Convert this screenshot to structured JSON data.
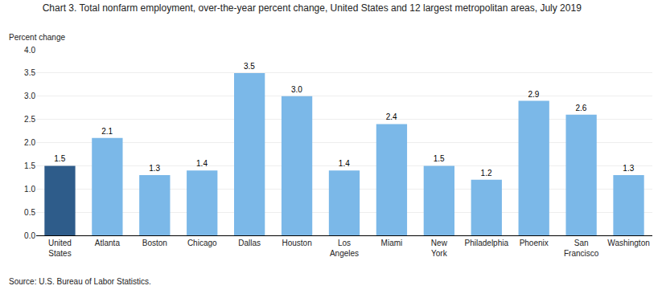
{
  "chart_data": {
    "type": "bar",
    "title": "Chart 3. Total nonfarm employment, over-the-year percent change, United States and 12 largest metropolitan areas, July 2019",
    "ylabel": "Percent change",
    "source": "Source: U.S. Bureau of Labor Statistics.",
    "categories": [
      "United\nStates",
      "Atlanta",
      "Boston",
      "Chicago",
      "Dallas",
      "Houston",
      "Los\nAngeles",
      "Miami",
      "New\nYork",
      "Philadelphia",
      "Phoenix",
      "San\nFrancisco",
      "Washington"
    ],
    "values": [
      1.5,
      2.1,
      1.3,
      1.4,
      3.5,
      3.0,
      1.4,
      2.4,
      1.5,
      1.2,
      2.9,
      2.6,
      1.3
    ],
    "value_labels": [
      "1.5",
      "2.1",
      "1.3",
      "1.4",
      "3.5",
      "3.0",
      "1.4",
      "2.4",
      "1.5",
      "1.2",
      "2.9",
      "2.6",
      "1.3"
    ],
    "data_labels": true,
    "colors": [
      "#2E5C8A",
      "#7BB8E8",
      "#7BB8E8",
      "#7BB8E8",
      "#7BB8E8",
      "#7BB8E8",
      "#7BB8E8",
      "#7BB8E8",
      "#7BB8E8",
      "#7BB8E8",
      "#7BB8E8",
      "#7BB8E8",
      "#7BB8E8"
    ],
    "ylim": [
      0,
      4.0
    ],
    "yticks": [
      {
        "value": 0,
        "label": "0.0"
      },
      0.5,
      {
        "value": 1,
        "label": "1.0"
      },
      1.5,
      {
        "value": 2,
        "label": "2.0"
      },
      2.5,
      {
        "value": 3,
        "label": "3.0"
      },
      3.5,
      {
        "value": 4,
        "label": "4.0"
      }
    ],
    "grid": true
  }
}
